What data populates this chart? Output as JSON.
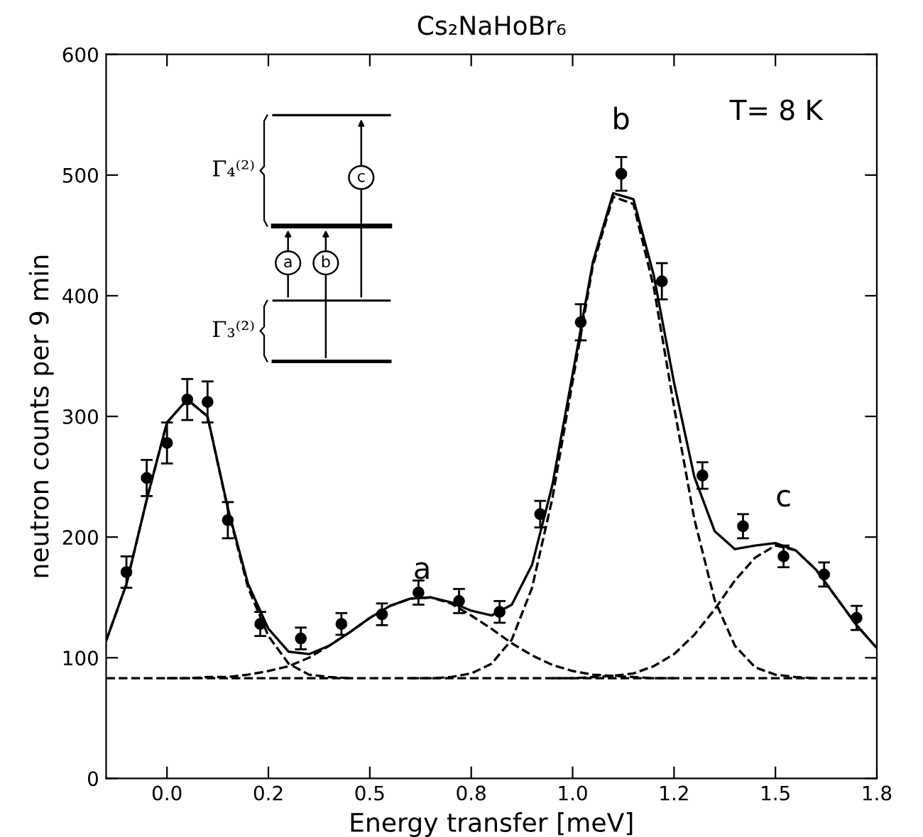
{
  "chart_data": {
    "type": "scatter",
    "title": "Cs₂NaHoBr₆",
    "xlabel": "Energy transfer [meV]",
    "ylabel": "neutron counts per 9 min",
    "xlim": [
      -0.15,
      1.75
    ],
    "xticks": [
      {
        "value": 0,
        "label": "0.0"
      },
      {
        "value": 0.25,
        "label": "0.2"
      },
      {
        "value": 0.5,
        "label": "0.5"
      },
      {
        "value": 0.75,
        "label": "0.8"
      },
      {
        "value": 1.0,
        "label": "1.0"
      },
      {
        "value": 1.25,
        "label": "1.2"
      },
      {
        "value": 1.5,
        "label": "1.5"
      },
      {
        "value": 1.75,
        "label": "1.8"
      }
    ],
    "ylim": [
      0,
      600
    ],
    "yticks": [
      0,
      100,
      200,
      300,
      400,
      500,
      600
    ],
    "grid": false,
    "legend": false,
    "series": [
      {
        "color": "#000000",
        "marker": "circle",
        "x": [
          -0.1,
          -0.05,
          0.0,
          0.05,
          0.1,
          0.15,
          0.23,
          0.33,
          0.43,
          0.53,
          0.62,
          0.72,
          0.82,
          0.92,
          1.02,
          1.12,
          1.22,
          1.32,
          1.42,
          1.52,
          1.62,
          1.7
        ],
        "values": [
          171,
          249,
          278,
          314,
          312,
          214,
          128,
          116,
          128,
          136,
          154,
          147,
          138,
          219,
          378,
          501,
          412,
          251,
          209,
          184,
          169,
          133
        ],
        "errors": [
          13,
          15,
          17,
          17,
          17,
          15,
          10,
          9,
          9,
          9,
          10,
          10,
          9,
          11,
          15,
          14,
          15,
          11,
          10,
          9,
          10,
          10
        ]
      },
      {
        "type": "line",
        "color": "#000000",
        "line_style": "solid",
        "marker": "none",
        "x": [
          -0.15,
          -0.1,
          -0.05,
          0.0,
          0.05,
          0.1,
          0.15,
          0.2,
          0.25,
          0.3,
          0.35,
          0.4,
          0.45,
          0.5,
          0.55,
          0.6,
          0.65,
          0.7,
          0.75,
          0.8,
          0.85,
          0.9,
          0.95,
          1.0,
          1.05,
          1.1,
          1.15,
          1.2,
          1.25,
          1.3,
          1.35,
          1.4,
          1.45,
          1.5,
          1.55,
          1.6,
          1.65,
          1.7,
          1.75
        ],
        "values": [
          114,
          161,
          231,
          295,
          314,
          300,
          224,
          161,
          124,
          105,
          103,
          110,
          121,
          133,
          143,
          149,
          150,
          146,
          139,
          135,
          144,
          177,
          243,
          335,
          428,
          485,
          480,
          417,
          328,
          250,
          205,
          190,
          193,
          195,
          189,
          173,
          150,
          127,
          108
        ]
      },
      {
        "type": "line",
        "color": "#000000",
        "line_style": "dashed",
        "marker": "none",
        "x": [
          -0.15,
          -0.1,
          -0.05,
          0.0,
          0.05,
          0.1,
          0.15,
          0.2,
          0.25,
          0.3,
          0.35,
          0.4,
          0.45
        ],
        "values": [
          114,
          161,
          231,
          295,
          314,
          300,
          223,
          158,
          118,
          95,
          86,
          84,
          83
        ]
      },
      {
        "type": "line",
        "color": "#000000",
        "line_style": "dashed",
        "marker": "none",
        "x": [
          0.0,
          0.05,
          0.1,
          0.15,
          0.2,
          0.25,
          0.3,
          0.35,
          0.4,
          0.45,
          0.5,
          0.55,
          0.6,
          0.65,
          0.7,
          0.75,
          0.8,
          0.85,
          0.9,
          0.95,
          1.0,
          1.05,
          1.1,
          1.15,
          1.2,
          1.25
        ],
        "values": [
          83,
          83,
          84,
          84,
          86,
          89,
          93,
          100,
          110,
          121,
          133,
          143,
          149,
          150,
          145,
          135,
          124,
          112,
          102,
          94,
          89,
          86,
          85,
          84,
          83,
          83
        ]
      },
      {
        "type": "line",
        "color": "#000000",
        "line_style": "dashed",
        "marker": "none",
        "x": [
          0.6,
          0.65,
          0.7,
          0.75,
          0.8,
          0.85,
          0.9,
          0.95,
          1.0,
          1.05,
          1.1,
          1.15,
          1.2,
          1.25,
          1.3,
          1.35,
          1.4,
          1.45,
          1.5,
          1.55,
          1.6
        ],
        "values": [
          83,
          83,
          84,
          87,
          95,
          115,
          158,
          232,
          329,
          425,
          482,
          476,
          407,
          308,
          215,
          148,
          110,
          92,
          86,
          84,
          83
        ]
      },
      {
        "type": "line",
        "color": "#000000",
        "line_style": "dashed",
        "marker": "none",
        "x": [
          0.95,
          1.0,
          1.05,
          1.1,
          1.15,
          1.2,
          1.25,
          1.3,
          1.35,
          1.4,
          1.45,
          1.5,
          1.55,
          1.6,
          1.65,
          1.7,
          1.75
        ],
        "values": [
          83,
          83,
          84,
          85,
          87,
          93,
          103,
          119,
          140,
          164,
          183,
          193,
          189,
          173,
          150,
          127,
          108
        ]
      }
    ],
    "ref_lines": [
      {
        "axis": "y",
        "value": 83,
        "color": "#000000",
        "line_style": "dashed"
      }
    ],
    "annotations": [
      "a",
      "b",
      "c",
      "T= 8 K",
      "Γ₄⁽²⁾",
      "Γ₃⁽²⁾",
      "a",
      "b",
      "c"
    ]
  }
}
